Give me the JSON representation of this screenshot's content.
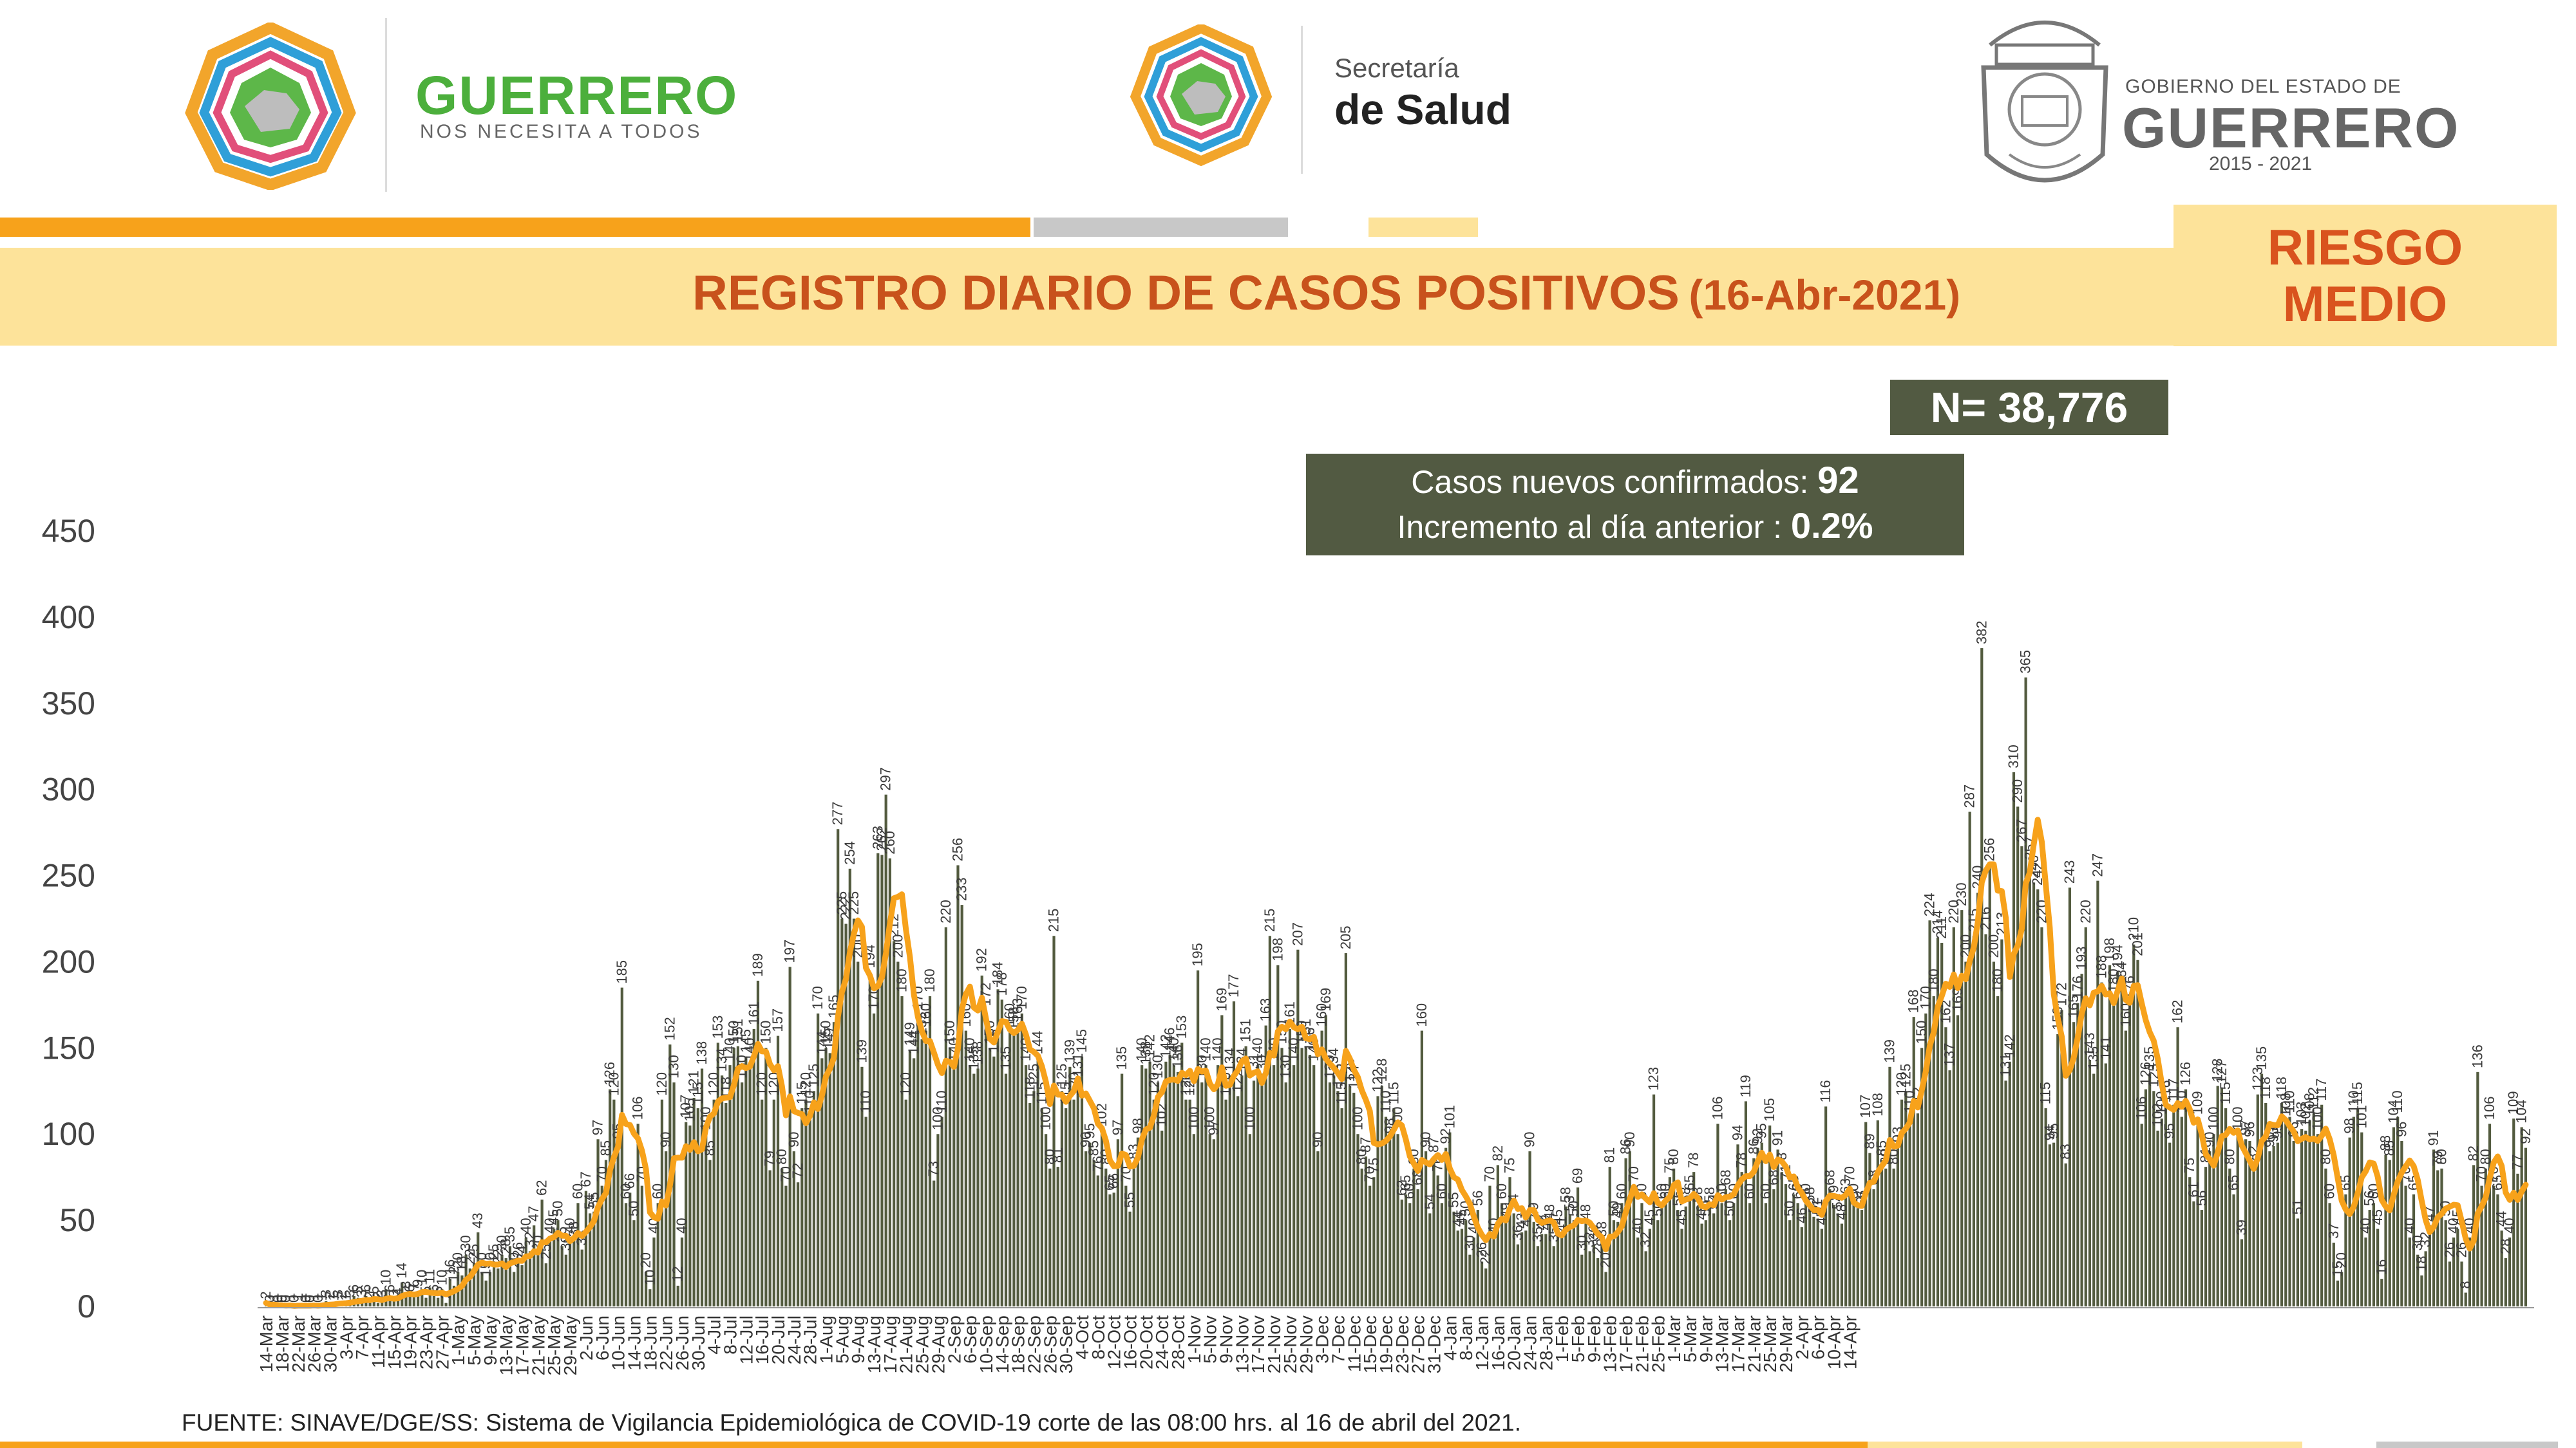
{
  "header": {
    "left_logo": {
      "title": "GUERRERO",
      "subtitle": "NOS NECESITA A TODOS"
    },
    "center_logo": {
      "line1": "Secretaría",
      "line2": "de Salud"
    },
    "right_logo": {
      "line1": "GOBIERNO DEL ESTADO DE",
      "line2": "GUERRERO",
      "line3": "2015 - 2021"
    }
  },
  "title": {
    "main": "REGISTRO DIARIO DE CASOS POSITIVOS",
    "date": "(16-Abr-2021)"
  },
  "risk": {
    "line1": "RIESGO",
    "line2": "MEDIO"
  },
  "total": {
    "text": "N= 38,776"
  },
  "summary": {
    "new_cases_label": "Casos nuevos confirmados:",
    "new_cases_value": "92",
    "increase_label": "Incremento al día anterior :",
    "increase_value": "0.2%"
  },
  "footer": {
    "source": "FUENTE: SINAVE/DGE/SS: Sistema de Vigilancia Epidemiológica de COVID-19 corte de las 08:00 hrs. al 16 de abril del 2021."
  },
  "colors": {
    "bar": "#535b3f",
    "moving_average": "#f7a21b",
    "title": "#c8521c",
    "band": "#fde39a",
    "box": "#525a42"
  },
  "chart_data": {
    "type": "bar",
    "title": "",
    "xlabel": "",
    "ylabel": "",
    "ylim": [
      0,
      450
    ],
    "yticks": [
      0,
      50,
      100,
      150,
      200,
      250,
      300,
      350,
      400,
      450
    ],
    "grid": false,
    "x_tick_labels": [
      "14-Mar",
      "18-Mar",
      "22-Mar",
      "26-Mar",
      "30-Mar",
      "3-Apr",
      "7-Apr",
      "11-Apr",
      "15-Apr",
      "19-Apr",
      "23-Apr",
      "27-Apr",
      "1-May",
      "5-May",
      "9-May",
      "13-May",
      "17-May",
      "21-May",
      "25-May",
      "29-May",
      "2-Jun",
      "6-Jun",
      "10-Jun",
      "14-Jun",
      "18-Jun",
      "22-Jun",
      "26-Jun",
      "30-Jun",
      "4-Jul",
      "8-Jul",
      "12-Jul",
      "16-Jul",
      "20-Jul",
      "24-Jul",
      "28-Jul",
      "1-Aug",
      "5-Aug",
      "9-Aug",
      "13-Aug",
      "17-Aug",
      "21-Aug",
      "25-Aug",
      "29-Aug",
      "2-Sep",
      "6-Sep",
      "10-Sep",
      "14-Sep",
      "18-Sep",
      "22-Sep",
      "26-Sep",
      "30-Sep",
      "4-Oct",
      "8-Oct",
      "12-Oct",
      "16-Oct",
      "20-Oct",
      "24-Oct",
      "28-Oct",
      "1-Nov",
      "5-Nov",
      "9-Nov",
      "13-Nov",
      "17-Nov",
      "21-Nov",
      "25-Nov",
      "29-Nov",
      "3-Dec",
      "7-Dec",
      "11-Dec",
      "15-Dec",
      "19-Dec",
      "23-Dec",
      "27-Dec",
      "31-Dec",
      "4-Jan",
      "8-Jan",
      "12-Jan",
      "16-Jan",
      "20-Jan",
      "24-Jan",
      "28-Jan",
      "1-Feb",
      "5-Feb",
      "9-Feb",
      "13-Feb",
      "17-Feb",
      "21-Feb",
      "25-Feb",
      "1-Mar",
      "5-Mar",
      "9-Mar",
      "13-Mar",
      "17-Mar",
      "21-Mar",
      "25-Mar",
      "29-Mar",
      "2-Apr",
      "6-Apr",
      "10-Apr",
      "14-Apr"
    ],
    "series_name": "Casos positivos por día",
    "values": [
      2,
      0,
      1,
      0,
      0,
      0,
      1,
      0,
      1,
      1,
      0,
      0,
      1,
      0,
      1,
      3,
      2,
      1,
      3,
      2,
      1,
      3,
      6,
      5,
      3,
      6,
      2,
      5,
      2,
      3,
      10,
      6,
      3,
      4,
      14,
      8,
      6,
      7,
      9,
      10,
      5,
      11,
      6,
      5,
      10,
      2,
      16,
      12,
      20,
      18,
      30,
      22,
      25,
      43,
      20,
      15,
      20,
      25,
      22,
      30,
      28,
      35,
      20,
      26,
      24,
      40,
      32,
      47,
      30,
      62,
      25,
      40,
      45,
      50,
      35,
      30,
      40,
      38,
      60,
      33,
      67,
      54,
      55,
      97,
      70,
      85,
      126,
      120,
      95,
      185,
      60,
      66,
      50,
      106,
      70,
      20,
      10,
      40,
      60,
      120,
      90,
      152,
      130,
      12,
      40,
      107,
      105,
      121,
      115,
      138,
      100,
      85,
      120,
      153,
      134,
      118,
      140,
      150,
      151,
      130,
      145,
      140,
      161,
      189,
      120,
      150,
      79,
      120,
      157,
      80,
      70,
      197,
      90,
      72,
      115,
      120,
      110,
      125,
      170,
      144,
      150,
      147,
      165,
      277,
      225,
      222,
      254,
      225,
      200,
      139,
      110,
      194,
      170,
      263,
      262,
      297,
      260,
      212,
      200,
      180,
      120,
      149,
      144,
      170,
      155,
      160,
      180,
      73,
      100,
      110,
      220,
      150,
      140,
      256,
      233,
      160,
      140,
      135,
      138,
      192,
      172,
      150,
      145,
      184,
      178,
      135,
      160,
      158,
      163,
      170,
      140,
      118,
      125,
      144,
      115,
      100,
      80,
      215,
      81,
      125,
      115,
      139,
      120,
      131,
      145,
      90,
      95,
      85,
      76,
      102,
      80,
      65,
      66,
      97,
      135,
      70,
      55,
      83,
      98,
      140,
      138,
      142,
      120,
      130,
      102,
      142,
      146,
      140,
      136,
      153,
      120,
      120,
      100,
      195,
      130,
      140,
      100,
      97,
      140,
      169,
      120,
      134,
      177,
      122,
      134,
      151,
      100,
      131,
      140,
      130,
      163,
      215,
      140,
      198,
      150,
      130,
      161,
      140,
      207,
      150,
      151,
      146,
      140,
      90,
      160,
      169,
      130,
      134,
      125,
      115,
      205,
      128,
      124,
      100,
      80,
      87,
      70,
      75,
      122,
      128,
      110,
      98,
      115,
      100,
      62,
      65,
      60,
      80,
      68,
      160,
      90,
      54,
      87,
      76,
      60,
      92,
      101,
      55,
      44,
      45,
      50,
      30,
      40,
      56,
      26,
      22,
      70,
      40,
      82,
      60,
      49,
      75,
      54,
      36,
      43,
      44,
      90,
      49,
      35,
      42,
      42,
      48,
      35,
      45,
      41,
      58,
      53,
      50,
      69,
      30,
      48,
      32,
      36,
      28,
      38,
      20,
      81,
      50,
      49,
      60,
      86,
      90,
      70,
      40,
      60,
      32,
      45,
      123,
      50,
      60,
      60,
      75,
      80,
      56,
      45,
      58,
      65,
      78,
      58,
      48,
      50,
      58,
      54,
      106,
      60,
      68,
      50,
      60,
      94,
      78,
      119,
      60,
      86,
      92,
      95,
      60,
      105,
      68,
      91,
      78,
      71,
      50,
      65,
      60,
      46,
      60,
      58,
      52,
      51,
      45,
      116,
      68,
      59,
      54,
      48,
      63,
      70,
      60,
      57,
      56,
      107,
      89,
      68,
      108,
      85,
      80,
      139,
      80,
      93,
      120,
      125,
      110,
      168,
      112,
      150,
      170,
      224,
      180,
      214,
      211,
      162,
      137,
      220,
      169,
      230,
      200,
      287,
      215,
      240,
      382,
      216,
      256,
      200,
      180,
      213,
      131,
      142,
      310,
      290,
      267,
      365,
      257,
      246,
      242,
      220,
      115,
      94,
      95,
      158,
      172,
      83,
      243,
      165,
      176,
      193,
      220,
      143,
      135,
      247,
      188,
      141,
      198,
      180,
      194,
      184,
      160,
      176,
      210,
      201,
      106,
      126,
      135,
      125,
      102,
      109,
      116,
      95,
      117,
      162,
      110,
      126,
      75,
      61,
      109,
      56,
      81,
      90,
      100,
      128,
      127,
      115,
      80,
      65,
      100,
      39,
      97,
      96,
      82,
      123,
      135,
      118,
      90,
      93,
      95,
      118,
      108,
      110,
      96,
      51,
      103,
      102,
      108,
      112,
      100,
      117,
      80,
      60,
      37,
      15,
      20,
      65,
      98,
      110,
      115,
      101,
      40,
      56,
      60,
      45,
      16,
      88,
      85,
      104,
      110,
      96,
      70,
      40,
      65,
      30,
      18,
      32,
      47,
      91,
      79,
      80,
      50,
      26,
      40,
      45,
      26,
      8,
      40,
      82,
      136,
      70,
      80,
      106,
      70,
      65,
      44,
      28,
      40,
      109,
      77,
      104,
      92
    ]
  }
}
